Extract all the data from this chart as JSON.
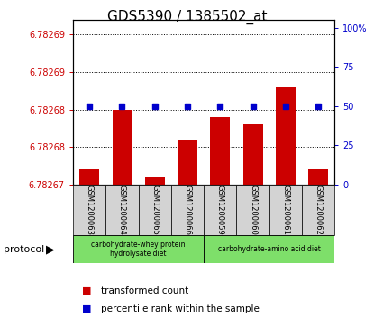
{
  "title": "GDS5390 / 1385502_at",
  "samples": [
    "GSM1200063",
    "GSM1200064",
    "GSM1200065",
    "GSM1200066",
    "GSM1200059",
    "GSM1200060",
    "GSM1200061",
    "GSM1200062"
  ],
  "red_values": [
    6.782672,
    6.78268,
    6.782671,
    6.782676,
    6.782679,
    6.782678,
    6.782683,
    6.782672
  ],
  "blue_values": [
    50,
    50,
    50,
    50,
    50,
    50,
    50,
    50
  ],
  "y_min": 6.78267,
  "y_max": 6.782692,
  "left_ticks": [
    6.78267,
    6.782675,
    6.78268,
    6.782685,
    6.78269
  ],
  "left_tick_labels": [
    "6.78267",
    "6.78268",
    "6.78268",
    "6.78269",
    "6.78269"
  ],
  "right_ticks": [
    0,
    25,
    50,
    75,
    100
  ],
  "right_tick_labels": [
    "0",
    "25",
    "50",
    "75",
    "100%"
  ],
  "protocol_groups": [
    {
      "label": "carbohydrate-whey protein\nhydrolysate diet",
      "start": 0,
      "end": 4,
      "color": "#7EDF6A"
    },
    {
      "label": "carbohydrate-amino acid diet",
      "start": 4,
      "end": 8,
      "color": "#7EDF6A"
    }
  ],
  "red_color": "#CC0000",
  "blue_color": "#0000CC",
  "bar_width": 0.6,
  "title_fontsize": 11,
  "axis_label_color_red": "#CC0000",
  "axis_label_color_blue": "#0000CC",
  "background_plot": "#ffffff",
  "background_sample": "#d3d3d3"
}
